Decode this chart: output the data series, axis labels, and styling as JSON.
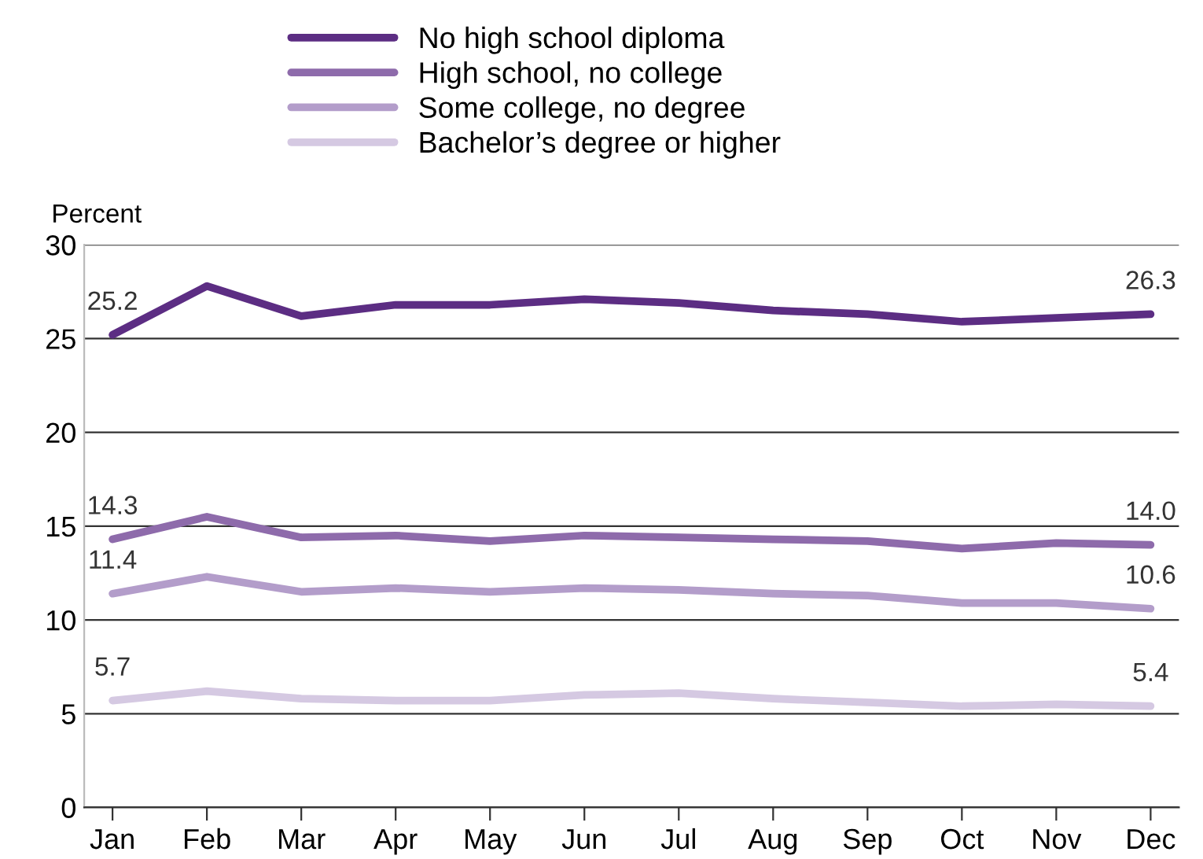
{
  "chart_data": {
    "type": "line",
    "ylabel": "Percent",
    "categories": [
      "Jan",
      "Feb",
      "Mar",
      "Apr",
      "May",
      "Jun",
      "Jul",
      "Aug",
      "Sep",
      "Oct",
      "Nov",
      "Dec"
    ],
    "series": [
      {
        "name": "No high school diploma",
        "color": "#5c2d83",
        "values": [
          25.2,
          27.8,
          26.2,
          26.8,
          26.8,
          27.1,
          26.9,
          26.5,
          26.3,
          25.9,
          26.1,
          26.3
        ],
        "value_labels": [
          "25.2",
          null,
          null,
          null,
          null,
          null,
          null,
          null,
          null,
          null,
          null,
          "26.3"
        ]
      },
      {
        "name": "High school, no college",
        "color": "#8e6bab",
        "values": [
          14.3,
          15.5,
          14.4,
          14.5,
          14.2,
          14.5,
          14.4,
          14.3,
          14.2,
          13.8,
          14.1,
          14.0
        ],
        "value_labels": [
          "14.3",
          null,
          null,
          null,
          null,
          null,
          null,
          null,
          null,
          null,
          null,
          "14.0"
        ]
      },
      {
        "name": "Some college, no degree",
        "color": "#b39dca",
        "values": [
          11.4,
          12.3,
          11.5,
          11.7,
          11.5,
          11.7,
          11.6,
          11.4,
          11.3,
          10.9,
          10.9,
          10.6
        ],
        "value_labels": [
          "11.4",
          null,
          null,
          null,
          null,
          null,
          null,
          null,
          null,
          null,
          null,
          "10.6"
        ]
      },
      {
        "name": "Bachelor’s degree or higher",
        "color": "#d5c9e2",
        "values": [
          5.7,
          6.2,
          5.8,
          5.7,
          5.7,
          6.0,
          6.1,
          5.8,
          5.6,
          5.4,
          5.5,
          5.4
        ],
        "value_labels": [
          "5.7",
          null,
          null,
          null,
          null,
          null,
          null,
          null,
          null,
          null,
          null,
          "5.4"
        ]
      }
    ],
    "ylim": [
      0,
      30
    ],
    "yticks": [
      0,
      5,
      10,
      15,
      20,
      25,
      30
    ],
    "grid": "y",
    "legend": "top",
    "marker": "none",
    "line_style": "solid"
  }
}
